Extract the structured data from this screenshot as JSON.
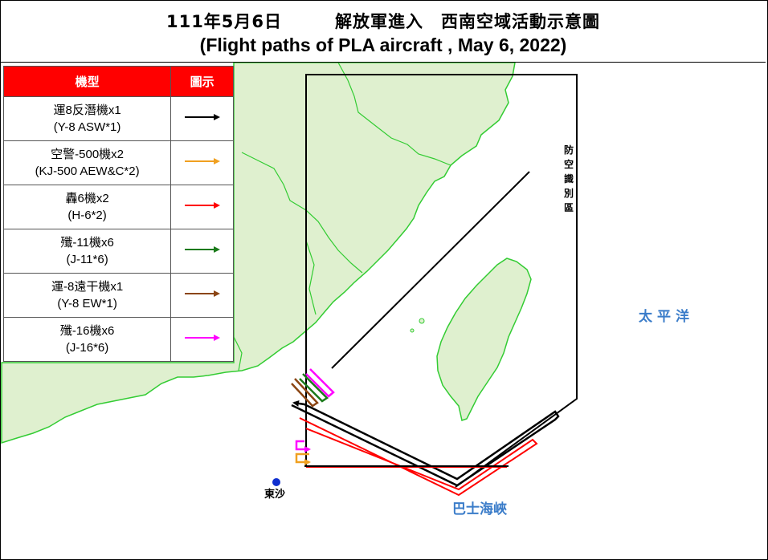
{
  "title": {
    "zh": "111年5月6日　　　解放軍進入　西南空域活動示意圖",
    "en": "(Flight paths of PLA aircraft , May 6, 2022)"
  },
  "legend": {
    "header_type": "機型",
    "header_symbol": "圖示",
    "items": [
      {
        "zh": "運8反潛機x1",
        "en": "(Y-8 ASW*1)",
        "color": "#000000",
        "icon": "black-arrow-icon"
      },
      {
        "zh": "空警-500機x2",
        "en": "(KJ-500 AEW&C*2)",
        "color": "#f0a020",
        "icon": "orange-arrow-icon"
      },
      {
        "zh": "轟6機x2",
        "en": "(H-6*2)",
        "color": "#ff0000",
        "icon": "red-arrow-icon"
      },
      {
        "zh": "殲-11機x6",
        "en": "(J-11*6)",
        "color": "#1a7a1a",
        "icon": "green-arrow-icon"
      },
      {
        "zh": "運-8遠干機x1",
        "en": "(Y-8 EW*1)",
        "color": "#8b4513",
        "icon": "brown-arrow-icon"
      },
      {
        "zh": "殲-16機x6",
        "en": "(J-16*6)",
        "color": "#ff00ff",
        "icon": "magenta-arrow-icon"
      }
    ]
  },
  "map": {
    "pacific_label": "太平洋",
    "bashi_label": "巴士海峽",
    "dongsha_label": "東沙",
    "adiz_label": "防空識別區",
    "land_color": "#dff0cf",
    "coast_color": "#33cc33",
    "sea_color": "#ffffff"
  }
}
